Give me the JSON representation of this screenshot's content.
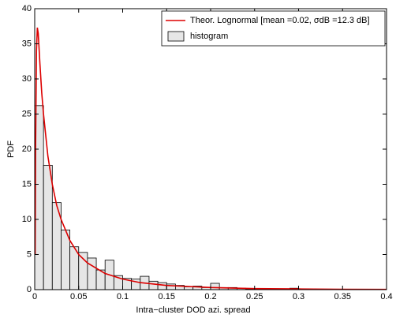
{
  "chart_data": {
    "type": "histogram",
    "xlabel": "Intra−cluster DOD azi. spread",
    "ylabel": "PDF",
    "xlim": [
      0,
      0.4
    ],
    "xticks": [
      0,
      0.05,
      0.1,
      0.15,
      0.2,
      0.25,
      0.3,
      0.35,
      0.4
    ],
    "ylim": [
      0,
      40
    ],
    "yticks": [
      0,
      5,
      10,
      15,
      20,
      25,
      30,
      35,
      40
    ],
    "legend": "upper right",
    "series": [
      {
        "name": "Theor. Lognormal [mean =0.02, σdB =12.3 dB]",
        "type": "line",
        "color": "#dd0000",
        "x": [
          0.0005,
          0.001,
          0.002,
          0.003,
          0.004,
          0.006,
          0.008,
          0.01,
          0.015,
          0.02,
          0.025,
          0.03,
          0.04,
          0.05,
          0.06,
          0.08,
          0.1,
          0.12,
          0.15,
          0.2,
          0.25,
          0.3,
          0.35,
          0.4
        ],
        "values": [
          5,
          20,
          34,
          37.3,
          36.5,
          32,
          28,
          25,
          19,
          15,
          12,
          10,
          7,
          5,
          3.8,
          2.3,
          1.5,
          1,
          0.6,
          0.3,
          0.15,
          0.1,
          0.05,
          0.03
        ]
      },
      {
        "name": "histogram",
        "type": "histogram",
        "color": "#e6e6e6",
        "bins": [
          0,
          0.01,
          0.02,
          0.03,
          0.04,
          0.05,
          0.06,
          0.07,
          0.08,
          0.09,
          0.1,
          0.11,
          0.12,
          0.13,
          0.14,
          0.15,
          0.16,
          0.17,
          0.18,
          0.19,
          0.2,
          0.21,
          0.22,
          0.23,
          0.24,
          0.25,
          0.26,
          0.27,
          0.28,
          0.29,
          0.3,
          0.31,
          0.32,
          0.33,
          0.34,
          0.35,
          0.36,
          0.37,
          0.38,
          0.39,
          0.4
        ],
        "values": [
          26.2,
          17.7,
          12.4,
          8.5,
          6.1,
          5.3,
          4.5,
          2.8,
          4.2,
          2.0,
          1.6,
          1.5,
          1.9,
          1.2,
          1.0,
          0.8,
          0.6,
          0.4,
          0.5,
          0.3,
          0.9,
          0.3,
          0.3,
          0.2,
          0.1,
          0.1,
          0.1,
          0.1,
          0.1,
          0.2,
          0.1,
          0.05,
          0.05,
          0.05,
          0.05,
          0.05,
          0,
          0,
          0,
          0
        ]
      }
    ]
  }
}
